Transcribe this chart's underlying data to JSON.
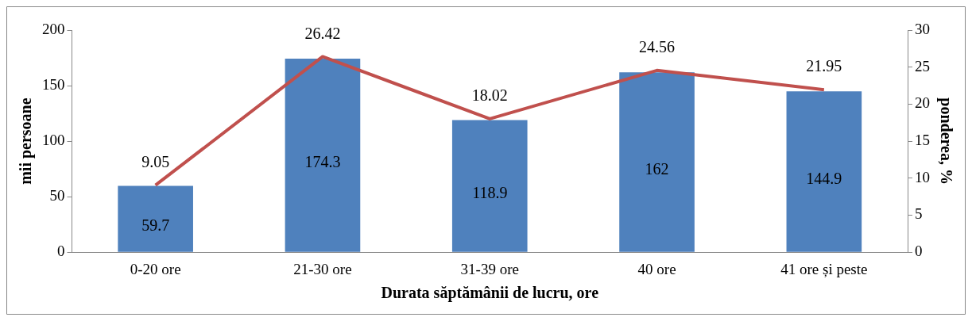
{
  "chart_data": {
    "type": "bar",
    "xlabel": "Durata săptămânii de lucru, ore",
    "ylabel": "mii persoane",
    "y2label": "ponderea, %",
    "categories": [
      "0-20 ore",
      "21-30 ore",
      "31-39 ore",
      "40 ore",
      "41 ore și peste"
    ],
    "series": [
      {
        "color": "#4f81bd",
        "values": [
          59.7,
          174.3,
          118.9,
          162,
          144.9
        ]
      },
      {
        "type": "line",
        "axis": "y2",
        "color": "#c0504d",
        "values": [
          9.05,
          26.42,
          18.02,
          24.56,
          21.95
        ]
      }
    ],
    "ylim": [
      0,
      200
    ],
    "yticks": [
      0,
      50,
      100,
      150,
      200
    ],
    "y2lim": [
      0,
      30
    ],
    "y2ticks": [
      0,
      5,
      10,
      15,
      20,
      25,
      30
    ],
    "grid": false,
    "legend": false,
    "data_labels": true,
    "marker": "none",
    "line_style": "solid"
  }
}
